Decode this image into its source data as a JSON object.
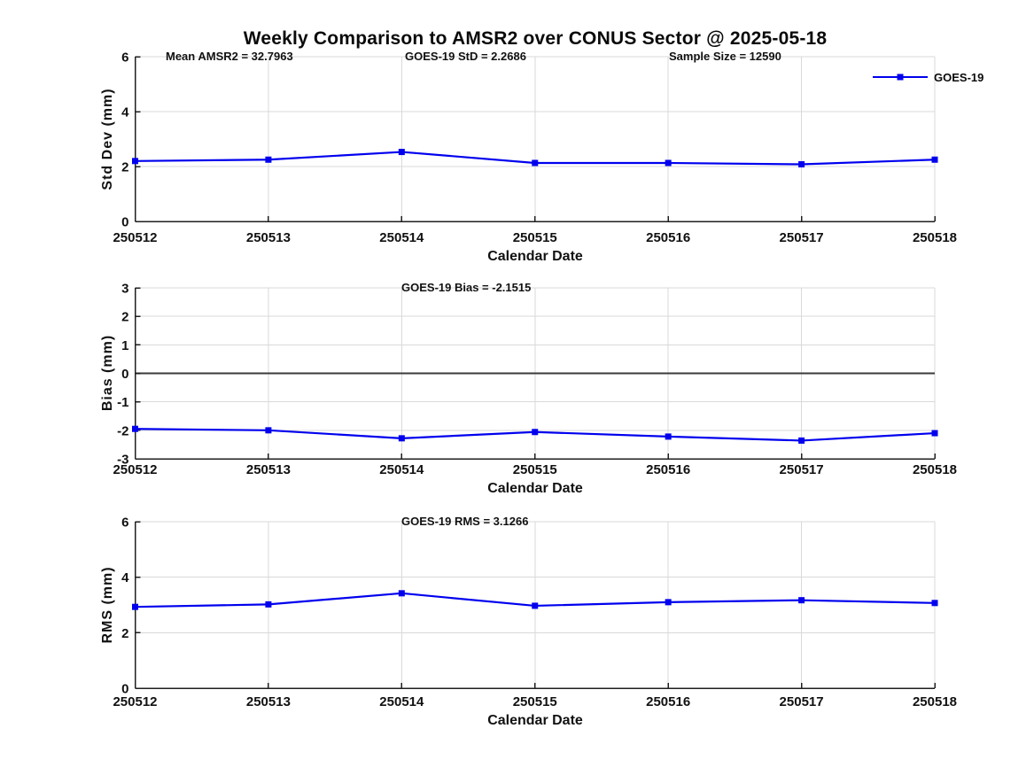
{
  "title": "Weekly Comparison to AMSR2 over CONUS Sector @ 2025-05-18",
  "colors": {
    "line": "#0000EE",
    "grid": "#D9D9D9",
    "axis": "#1F1F1F",
    "zero_line": "#3A3A3A",
    "text": "#111111"
  },
  "legend": {
    "label": "GOES-19",
    "position": "top-right-outside"
  },
  "chart_data": [
    {
      "type": "line",
      "name": "std-dev",
      "annotations": [
        "Mean AMSR2 = 32.7963",
        "GOES-19 StD = 2.2686",
        "Sample Size = 12590"
      ],
      "categories": [
        "250512",
        "250513",
        "250514",
        "250515",
        "250516",
        "250517",
        "250518"
      ],
      "series": [
        {
          "name": "GOES-19",
          "values": [
            2.2,
            2.25,
            2.53,
            2.13,
            2.13,
            2.08,
            2.25
          ]
        }
      ],
      "xlabel": "Calendar Date",
      "ylabel": "Std Dev (mm)",
      "ylim": [
        0,
        6
      ],
      "yticks": [
        0,
        2,
        4,
        6
      ],
      "grid": true,
      "zero_line": false
    },
    {
      "type": "line",
      "name": "bias",
      "annotations": [
        "GOES-19 Bias  = -2.1515"
      ],
      "categories": [
        "250512",
        "250513",
        "250514",
        "250515",
        "250516",
        "250517",
        "250518"
      ],
      "series": [
        {
          "name": "GOES-19",
          "values": [
            -1.95,
            -2.0,
            -2.28,
            -2.06,
            -2.22,
            -2.36,
            -2.1
          ]
        }
      ],
      "xlabel": "Calendar Date",
      "ylabel": "Bias (mm)",
      "ylim": [
        -3,
        3
      ],
      "yticks": [
        -3,
        -2,
        -1,
        0,
        1,
        2,
        3
      ],
      "grid": true,
      "zero_line": true
    },
    {
      "type": "line",
      "name": "rms",
      "annotations": [
        "GOES-19 RMS = 3.1266"
      ],
      "categories": [
        "250512",
        "250513",
        "250514",
        "250515",
        "250516",
        "250517",
        "250518"
      ],
      "series": [
        {
          "name": "GOES-19",
          "values": [
            2.93,
            3.02,
            3.42,
            2.97,
            3.1,
            3.17,
            3.07
          ]
        }
      ],
      "xlabel": "Calendar Date",
      "ylabel": "RMS (mm)",
      "ylim": [
        0,
        6
      ],
      "yticks": [
        0,
        2,
        4,
        6
      ],
      "grid": true,
      "zero_line": false
    }
  ]
}
